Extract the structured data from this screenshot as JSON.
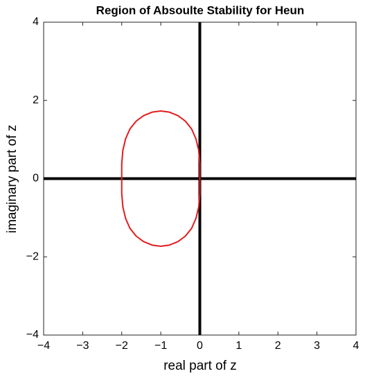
{
  "chart_data": {
    "type": "line",
    "title": "Region of Absoulte Stability for Heun",
    "x_label": "real part of z",
    "y_label": "imaginary part of z",
    "xlim": [
      -4,
      4
    ],
    "ylim": [
      -4,
      4
    ],
    "xticks": [
      {
        "value": -4,
        "label": "−4"
      },
      {
        "value": -3,
        "label": "−3"
      },
      {
        "value": -2,
        "label": "−2"
      },
      {
        "value": -1,
        "label": "−1"
      },
      0,
      1,
      2,
      3,
      4
    ],
    "yticks": [
      {
        "value": -4,
        "label": "−4"
      },
      {
        "value": -2,
        "label": "−2"
      },
      0,
      2,
      4
    ],
    "zero_axes": true,
    "series": [
      {
        "color": "#e31a1c",
        "x": [
          0,
          0,
          -0.03,
          -0.1,
          -0.21,
          -0.37,
          -0.56,
          -0.78,
          -1,
          -1.22,
          -1.44,
          -1.63,
          -1.79,
          -1.9,
          -1.97,
          -2,
          -2,
          -2,
          -1.97,
          -1.9,
          -1.79,
          -1.63,
          -1.44,
          -1.22,
          -1,
          -0.78,
          -0.56,
          -0.37,
          -0.21,
          -0.1,
          -0.03,
          0,
          0
        ],
        "values": [
          0,
          0.38,
          0.73,
          1.02,
          1.27,
          1.47,
          1.61,
          1.7,
          1.73,
          1.7,
          1.61,
          1.47,
          1.27,
          1.02,
          0.73,
          0.38,
          0,
          -0.38,
          -0.73,
          -1.02,
          -1.27,
          -1.47,
          -1.61,
          -1.7,
          -1.73,
          -1.7,
          -1.61,
          -1.47,
          -1.27,
          -1.02,
          -0.73,
          -0.38,
          0
        ]
      }
    ]
  }
}
